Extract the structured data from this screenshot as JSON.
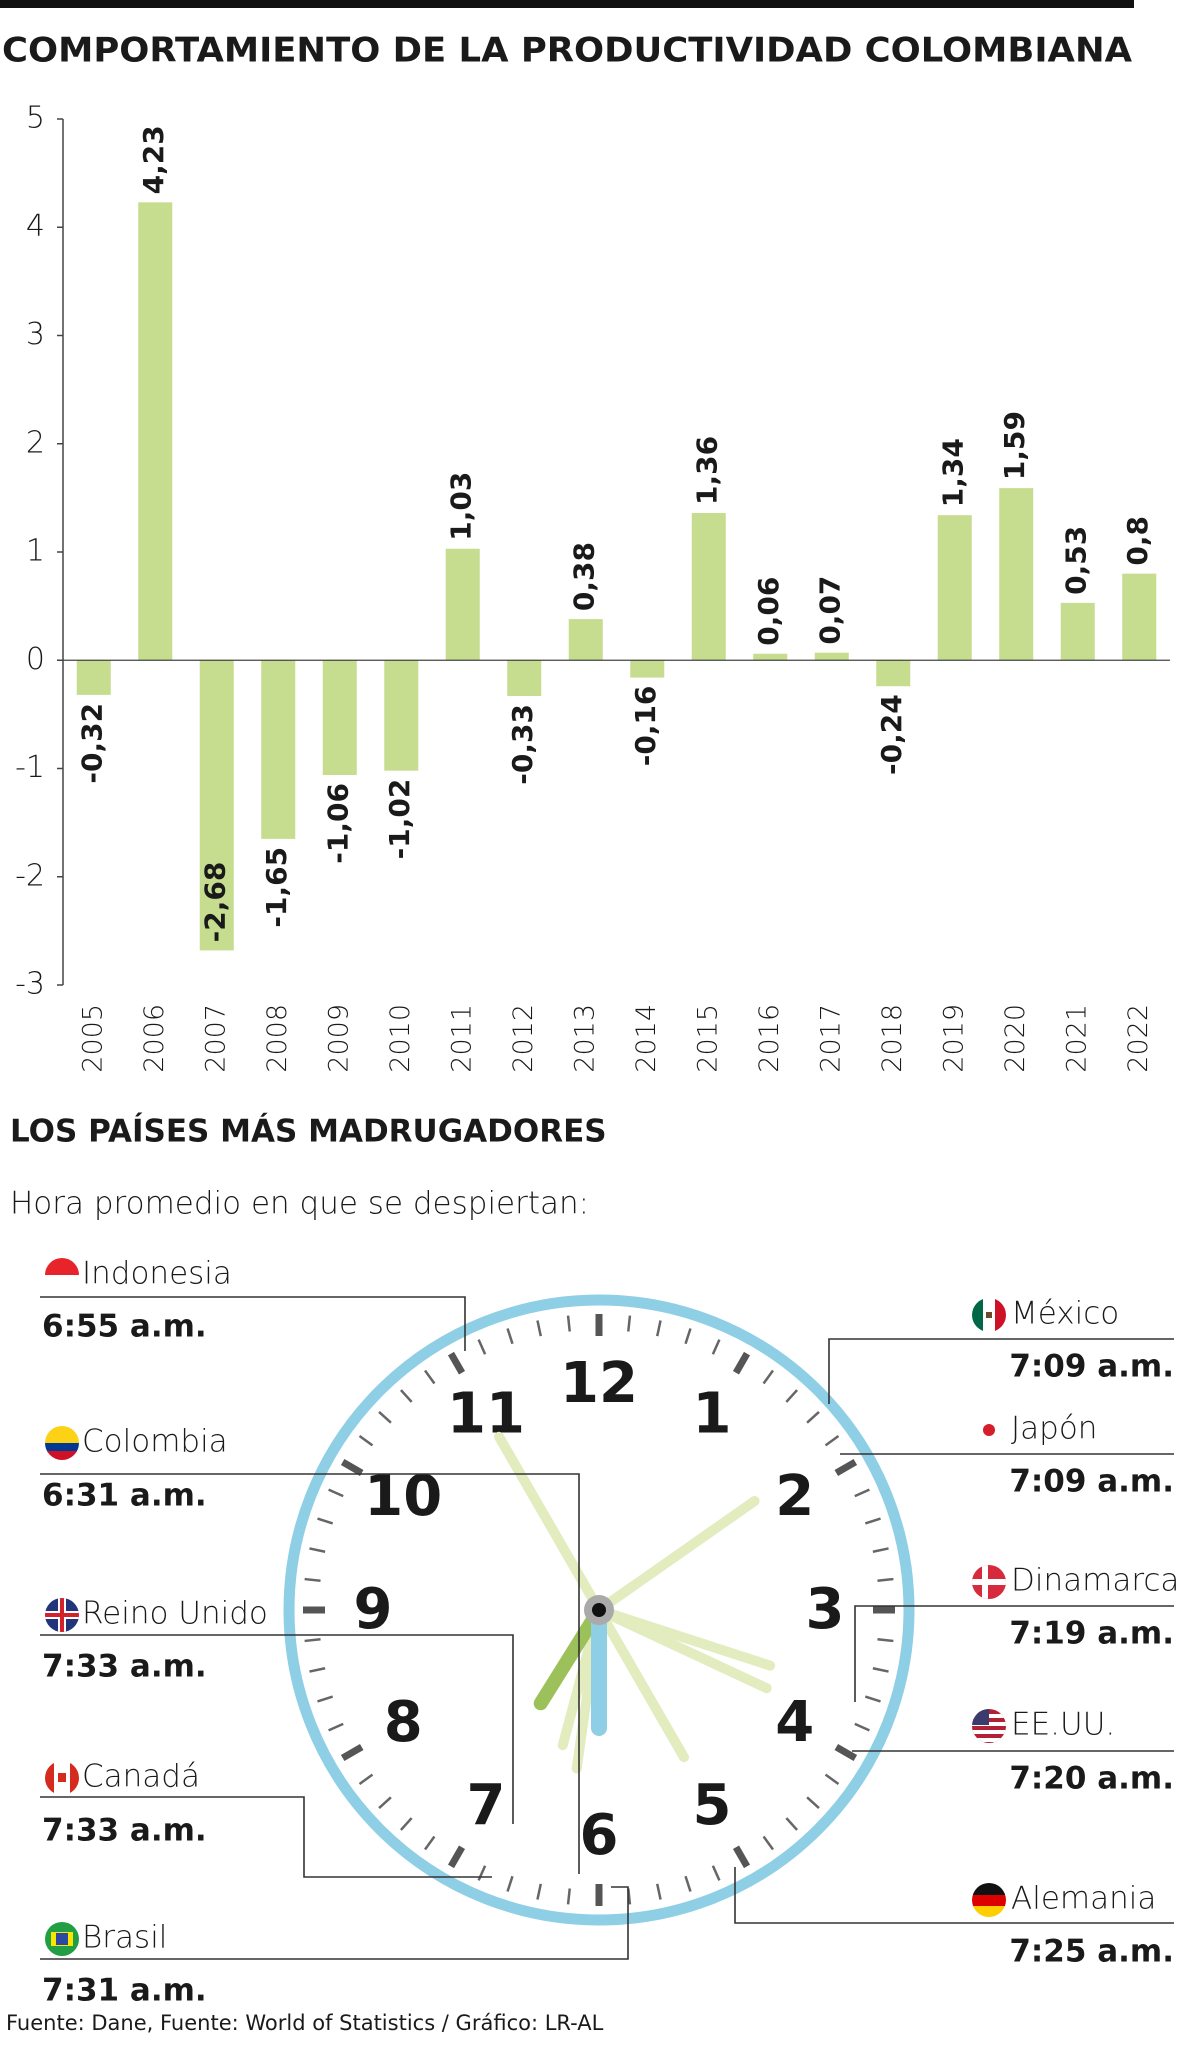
{
  "chart_data": {
    "type": "bar",
    "title": "COMPORTAMIENTO DE LA PRODUCTIVIDAD COLOMBIANA",
    "categories": [
      "2005",
      "2006",
      "2007",
      "2008",
      "2009",
      "2010",
      "2011",
      "2012",
      "2013",
      "2014",
      "2015",
      "2016",
      "2017",
      "2018",
      "2019",
      "2020",
      "2021",
      "2022"
    ],
    "values": [
      -0.32,
      4.23,
      -2.68,
      -1.65,
      -1.06,
      -1.02,
      1.03,
      -0.33,
      0.38,
      -0.16,
      1.36,
      0.06,
      0.07,
      -0.24,
      1.34,
      1.59,
      0.53,
      0.8
    ],
    "value_labels": [
      "-0,32",
      "4,23",
      "-2,68",
      "-1,65",
      "-1,06",
      "-1,02",
      "1,03",
      "-0,33",
      "0,38",
      "-0,16",
      "1,36",
      "0,06",
      "0,07",
      "-0,24",
      "1,34",
      "1,59",
      "0,53",
      "0,8"
    ],
    "color": "#c6dc8e",
    "ylim": [
      -3,
      5
    ],
    "yticks": [
      -3,
      -2,
      -1,
      0,
      1,
      2,
      3,
      4,
      5
    ]
  },
  "infographic": {
    "title": "LOS PAÍSES MÁS MADRUGADORES",
    "subtitle": "Hora promedio en que se despiertan:",
    "clock_numbers": [
      "12",
      "1",
      "2",
      "3",
      "4",
      "5",
      "6",
      "7",
      "8",
      "9",
      "10",
      "11"
    ],
    "countries": [
      {
        "name": "Indonesia",
        "time": "6:55 a.m."
      },
      {
        "name": "Colombia",
        "time": "6:31 a.m."
      },
      {
        "name": "Reino Unido",
        "time": "7:33 a.m."
      },
      {
        "name": "Canadá",
        "time": "7:33 a.m."
      },
      {
        "name": "Brasil",
        "time": "7:31 a.m."
      },
      {
        "name": "México",
        "time": "7:09 a.m."
      },
      {
        "name": "Japón",
        "time": "7:09 a.m."
      },
      {
        "name": "Dinamarca",
        "time": "7:19 a.m."
      },
      {
        "name": "EE.UU.",
        "time": "7:20 a.m."
      },
      {
        "name": "Alemania",
        "time": "7:25 a.m."
      }
    ]
  },
  "source": "Fuente: Dane, Fuente: World of Statistics / Gráfico: LR-AL"
}
